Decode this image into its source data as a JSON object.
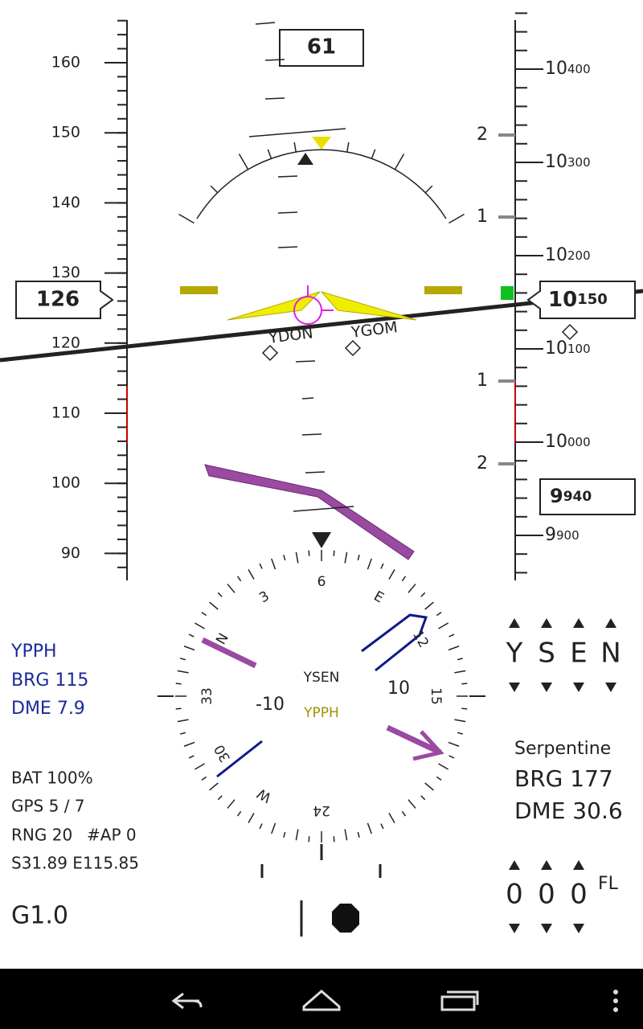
{
  "heading": "61",
  "speed_tape": {
    "labels": [
      "160",
      "150",
      "140",
      "130",
      "120",
      "110",
      "100",
      "90"
    ],
    "current": "126"
  },
  "altitude_tape": {
    "labels": [
      {
        "major": "10",
        "minor": "400"
      },
      {
        "major": "10",
        "minor": "300"
      },
      {
        "major": "10",
        "minor": "200"
      },
      {
        "major": "10",
        "minor": "100"
      },
      {
        "major": "10",
        "minor": "000"
      },
      {
        "major": "9",
        "minor": "900"
      }
    ],
    "current": {
      "major": "10",
      "minor": "150"
    },
    "selected": {
      "major": "9",
      "minor": "940"
    }
  },
  "vsi_labels": [
    "2",
    "1",
    "1",
    "2"
  ],
  "waypoints": [
    "YDON",
    "YGOM"
  ],
  "compass": {
    "labels": [
      "6",
      "E",
      "12",
      "15",
      "24",
      "W",
      "30",
      "33",
      "N",
      "3"
    ],
    "from": "YSEN",
    "to": "YPPH",
    "left_deviation": "-10",
    "right_deviation": "10"
  },
  "left_info": {
    "waypoint": "YPPH",
    "bearing": "BRG 115",
    "distance": "DME 7.9",
    "battery": "BAT 100%",
    "gps": "GPS 5 / 7",
    "range": "RNG 20",
    "autopilot": "#AP 0",
    "position": "S31.89 E115.85",
    "g_load": "G1.0"
  },
  "right_info": {
    "code_letters": [
      "Y",
      "S",
      "E",
      "N"
    ],
    "name": "Serpentine",
    "bearing": "BRG 177",
    "distance": "DME 30.6",
    "fl_digits": [
      "0",
      "0",
      "0"
    ],
    "fl": "FL"
  }
}
